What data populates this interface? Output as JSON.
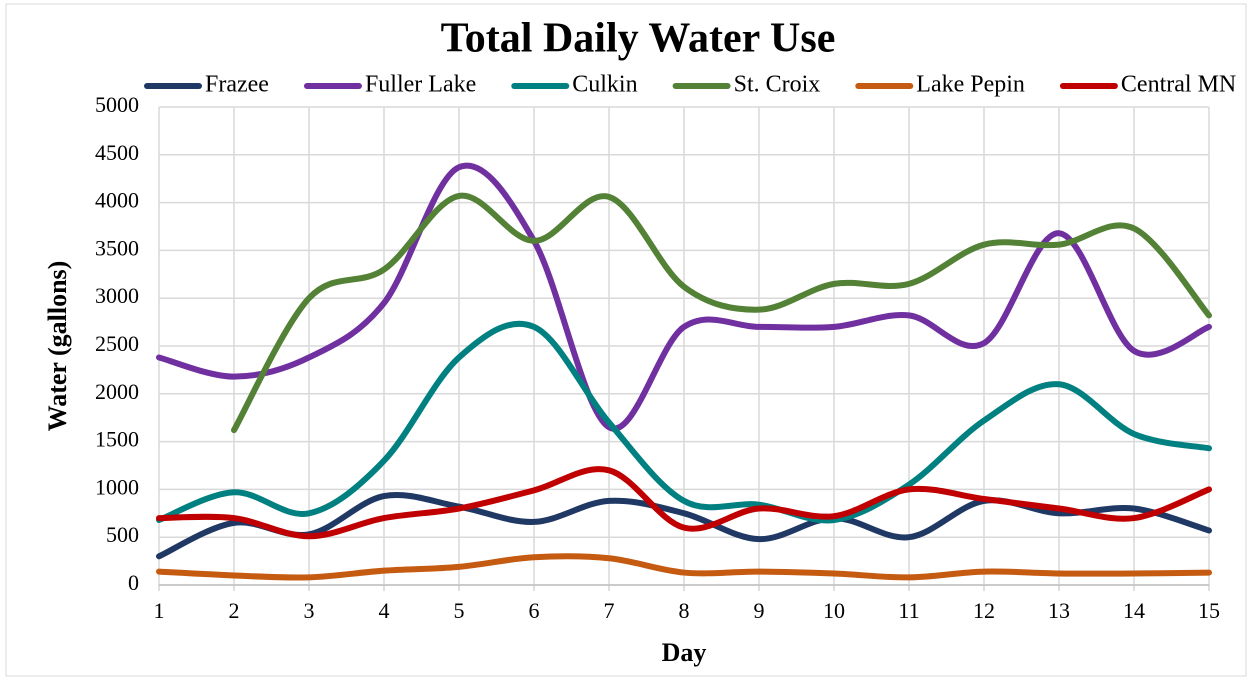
{
  "chart_data": {
    "type": "line",
    "title": "Total Daily Water Use",
    "x_label": "Day",
    "y_label": "Water (gallons)",
    "x": [
      1,
      2,
      3,
      4,
      5,
      6,
      7,
      8,
      9,
      10,
      11,
      12,
      13,
      14,
      15
    ],
    "xlim": [
      1,
      15
    ],
    "xticks": [
      1,
      2,
      3,
      4,
      5,
      6,
      7,
      8,
      9,
      10,
      11,
      12,
      13,
      14,
      15
    ],
    "ylim": [
      0,
      5000
    ],
    "yticks": [
      0,
      500,
      1000,
      1500,
      2000,
      2500,
      3000,
      3500,
      4000,
      4500,
      5000
    ],
    "grid": true,
    "smooth": true,
    "legend": "top",
    "series": [
      {
        "name": "Frazee",
        "color": "#1f3864",
        "values": [
          300,
          650,
          530,
          930,
          820,
          660,
          880,
          750,
          480,
          700,
          500,
          880,
          750,
          800,
          570
        ]
      },
      {
        "name": "Fuller Lake",
        "color": "#7030a0",
        "values": [
          2380,
          2180,
          2380,
          2950,
          4370,
          3600,
          1650,
          2700,
          2700,
          2700,
          2820,
          2530,
          3680,
          2450,
          2700
        ]
      },
      {
        "name": "Culkin",
        "color": "#008080",
        "values": [
          680,
          970,
          750,
          1300,
          2380,
          2700,
          1700,
          880,
          840,
          680,
          1050,
          1720,
          2100,
          1580,
          1430
        ]
      },
      {
        "name": "St. Croix",
        "color": "#538135",
        "values": [
          null,
          1620,
          3000,
          3300,
          4070,
          3600,
          4060,
          3120,
          2880,
          3150,
          3150,
          3560,
          3560,
          3730,
          2820
        ]
      },
      {
        "name": "Lake Pepin",
        "color": "#c55a11",
        "values": [
          140,
          100,
          80,
          150,
          190,
          290,
          280,
          130,
          140,
          120,
          80,
          140,
          120,
          120,
          130
        ]
      },
      {
        "name": "Central MN",
        "color": "#c00000",
        "values": [
          700,
          700,
          510,
          700,
          800,
          990,
          1200,
          600,
          800,
          720,
          1000,
          900,
          800,
          700,
          1000
        ]
      }
    ]
  }
}
